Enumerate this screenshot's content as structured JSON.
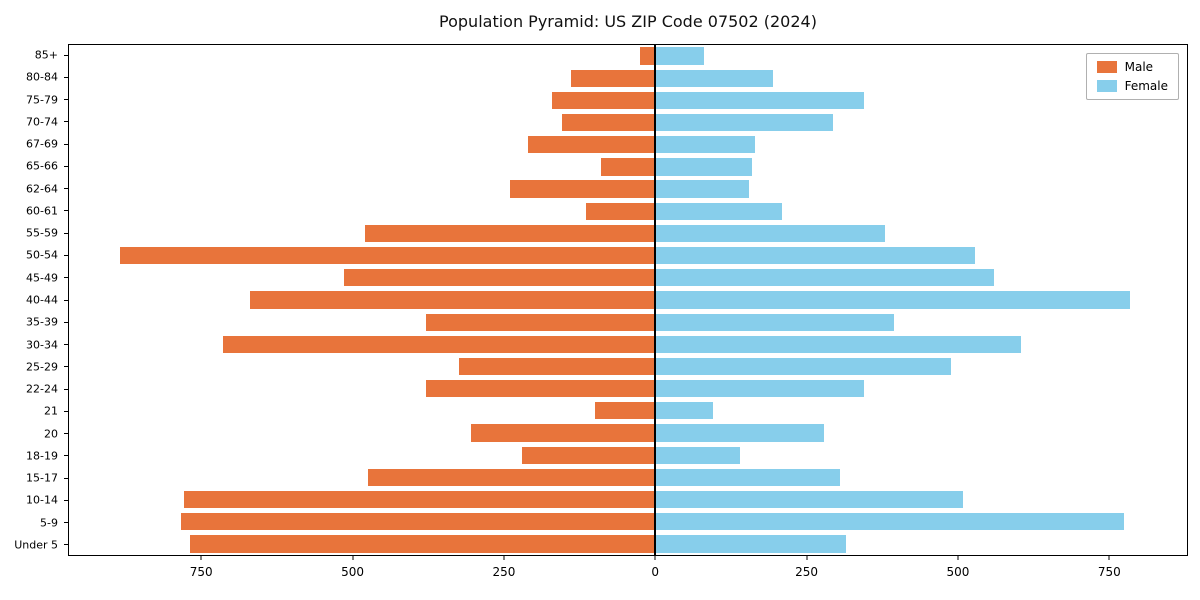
{
  "chart_data": {
    "type": "bar",
    "orientation": "horizontal-population-pyramid",
    "title": "Population Pyramid: US ZIP Code 07502 (2024)",
    "categories": [
      "Under 5",
      "5-9",
      "10-14",
      "15-17",
      "18-19",
      "20",
      "21",
      "22-24",
      "25-29",
      "30-34",
      "35-39",
      "40-44",
      "45-49",
      "50-54",
      "55-59",
      "60-61",
      "62-64",
      "65-66",
      "67-69",
      "70-74",
      "75-79",
      "80-84",
      "85+"
    ],
    "categories_display_order": "85+ at top, Under 5 at bottom",
    "series": [
      {
        "name": "Male",
        "side": "left",
        "color": "#e8743b",
        "values": [
          770,
          785,
          780,
          475,
          220,
          305,
          100,
          380,
          325,
          715,
          380,
          670,
          515,
          885,
          480,
          115,
          240,
          90,
          210,
          155,
          170,
          140,
          25
        ]
      },
      {
        "name": "Female",
        "side": "right",
        "color": "#87ceeb",
        "values": [
          315,
          775,
          510,
          305,
          140,
          280,
          95,
          345,
          490,
          605,
          395,
          785,
          560,
          530,
          380,
          210,
          155,
          160,
          165,
          295,
          345,
          195,
          80
        ]
      }
    ],
    "x_ticks": [
      -750,
      -500,
      -250,
      0,
      250,
      500,
      750
    ],
    "x_tick_labels": [
      "750",
      "500",
      "250",
      "0",
      "250",
      "500",
      "750"
    ],
    "xlim": {
      "left": 970,
      "right": 880
    },
    "grid": false,
    "legend_position": "upper right",
    "axis_color": "#000000",
    "background_color": "#ffffff"
  }
}
